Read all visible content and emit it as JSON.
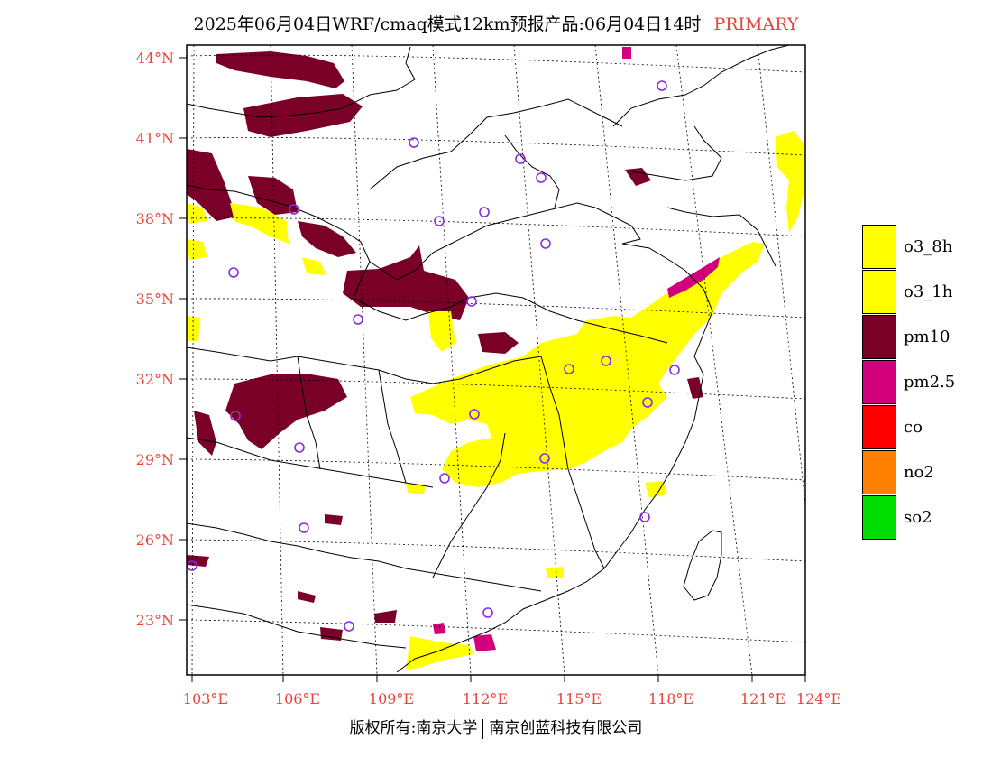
{
  "title": {
    "main": "2025年06月04日WRF/cmaq模式12km预报产品:06月04日14时",
    "tag": "PRIMARY"
  },
  "colors": {
    "o3_8h": "#ffff00",
    "o3_1h": "#ffff00",
    "pm10": "#7a0028",
    "pm25": "#d2007a",
    "co": "#ff0000",
    "no2": "#ff8000",
    "so2": "#00dd00",
    "site_marker": "#8a2be2",
    "axis_label": "#e8443a"
  },
  "map": {
    "lat_labels": [
      "44°N",
      "41°N",
      "38°N",
      "35°N",
      "32°N",
      "29°N",
      "26°N",
      "23°N"
    ],
    "lon_labels": [
      "103°E",
      "106°E",
      "109°E",
      "112°E",
      "115°E",
      "118°E",
      "121°E",
      "124°E"
    ]
  },
  "legend": [
    {
      "key": "o3_8h",
      "label": "o3_8h"
    },
    {
      "key": "o3_1h",
      "label": "o3_1h"
    },
    {
      "key": "pm10",
      "label": "pm10"
    },
    {
      "key": "pm25",
      "label": "pm2.5"
    },
    {
      "key": "co",
      "label": "co"
    },
    {
      "key": "no2",
      "label": "no2"
    },
    {
      "key": "so2",
      "label": "so2"
    }
  ],
  "copyright": {
    "left": "版权所有:南京大学",
    "right": "南京创蓝科技有限公司"
  }
}
